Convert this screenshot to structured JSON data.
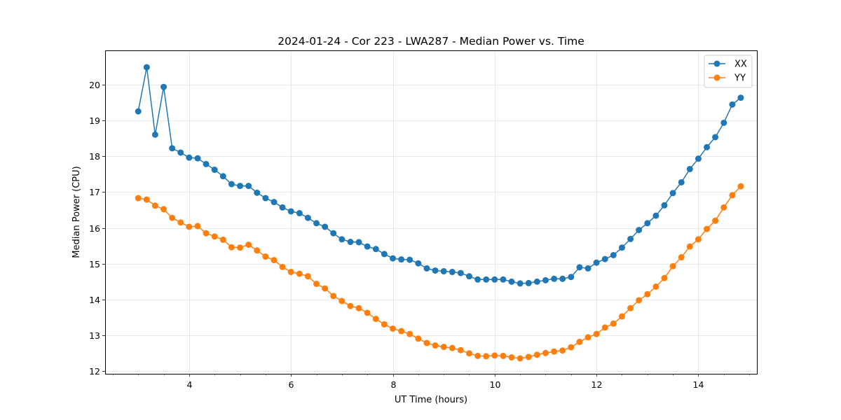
{
  "chart_data": {
    "type": "line",
    "title": "2024-01-24 - Cor 223 - LWA287 - Median Power vs. Time",
    "xlabel": "UT Time (hours)",
    "ylabel": "Median Power (CPU)",
    "xlim": [
      2.35,
      15.15
    ],
    "ylim": [
      11.93,
      20.95
    ],
    "xticks": [
      4,
      6,
      8,
      10,
      12,
      14
    ],
    "xtick_labels": [
      "4",
      "6",
      "8",
      "10",
      "12",
      "14"
    ],
    "yticks": [
      12,
      13,
      14,
      15,
      16,
      17,
      18,
      19,
      20
    ],
    "ytick_labels": [
      "12",
      "13",
      "14",
      "15",
      "16",
      "17",
      "18",
      "19",
      "20"
    ],
    "grid": true,
    "legend_position": "top-right",
    "x": [
      3.0,
      3.167,
      3.333,
      3.5,
      3.667,
      3.833,
      4.0,
      4.167,
      4.333,
      4.5,
      4.667,
      4.833,
      5.0,
      5.167,
      5.333,
      5.5,
      5.667,
      5.833,
      6.0,
      6.167,
      6.333,
      6.5,
      6.667,
      6.833,
      7.0,
      7.167,
      7.333,
      7.5,
      7.667,
      7.833,
      8.0,
      8.167,
      8.333,
      8.5,
      8.667,
      8.833,
      9.0,
      9.167,
      9.333,
      9.5,
      9.667,
      9.833,
      10.0,
      10.167,
      10.333,
      10.5,
      10.667,
      10.833,
      11.0,
      11.167,
      11.333,
      11.5,
      11.667,
      11.833,
      12.0,
      12.167,
      12.333,
      12.5,
      12.667,
      12.833,
      13.0,
      13.167,
      13.333,
      13.5,
      13.667,
      13.833,
      14.0,
      14.167,
      14.333,
      14.5,
      14.667,
      14.833
    ],
    "series": [
      {
        "name": "XX",
        "color": "#1f77b4",
        "values": [
          19.25,
          20.48,
          18.6,
          19.93,
          18.22,
          18.1,
          17.96,
          17.94,
          17.78,
          17.62,
          17.44,
          17.22,
          17.17,
          17.17,
          16.98,
          16.83,
          16.72,
          16.57,
          16.46,
          16.41,
          16.28,
          16.13,
          16.03,
          15.85,
          15.68,
          15.61,
          15.6,
          15.48,
          15.41,
          15.27,
          15.15,
          15.12,
          15.11,
          15.01,
          14.87,
          14.81,
          14.79,
          14.77,
          14.74,
          14.65,
          14.56,
          14.56,
          14.56,
          14.56,
          14.5,
          14.45,
          14.46,
          14.5,
          14.54,
          14.58,
          14.58,
          14.63,
          14.9,
          14.87,
          15.03,
          15.13,
          15.24,
          15.45,
          15.69,
          15.94,
          16.13,
          16.34,
          16.63,
          16.97,
          17.27,
          17.64,
          17.93,
          18.25,
          18.53,
          18.93,
          19.44,
          19.63
        ]
      },
      {
        "name": "YY",
        "color": "#ff7f0e",
        "values": [
          16.83,
          16.79,
          16.62,
          16.52,
          16.28,
          16.15,
          16.03,
          16.05,
          15.85,
          15.76,
          15.67,
          15.46,
          15.45,
          15.53,
          15.37,
          15.2,
          15.1,
          14.91,
          14.77,
          14.72,
          14.65,
          14.44,
          14.31,
          14.1,
          13.96,
          13.82,
          13.76,
          13.63,
          13.46,
          13.31,
          13.19,
          13.12,
          13.04,
          12.91,
          12.79,
          12.72,
          12.68,
          12.65,
          12.59,
          12.5,
          12.43,
          12.42,
          12.44,
          12.43,
          12.39,
          12.36,
          12.4,
          12.46,
          12.51,
          12.55,
          12.58,
          12.67,
          12.82,
          12.95,
          13.04,
          13.22,
          13.33,
          13.53,
          13.76,
          13.98,
          14.15,
          14.36,
          14.6,
          14.93,
          15.18,
          15.48,
          15.68,
          15.97,
          16.2,
          16.57,
          16.91,
          17.16
        ]
      }
    ]
  }
}
